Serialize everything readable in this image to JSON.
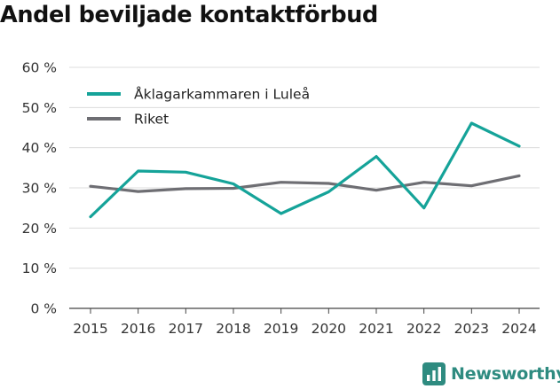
{
  "chart_data": {
    "type": "line",
    "title": "Andel beviljade kontaktförbud",
    "xlabel": "",
    "ylabel": "",
    "categories": [
      "2015",
      "2016",
      "2017",
      "2018",
      "2019",
      "2020",
      "2021",
      "2022",
      "2023",
      "2024"
    ],
    "ylim": [
      0,
      60
    ],
    "yticks": [
      0,
      10,
      20,
      30,
      40,
      50,
      60
    ],
    "ytick_labels": [
      "0 %",
      "10 %",
      "20 %",
      "30 %",
      "40 %",
      "50 %",
      "60 %"
    ],
    "grid": true,
    "legend_position": "top-left",
    "series": [
      {
        "name": "Åklagarkammaren i Luleå",
        "color": "#15a399",
        "values": [
          22.8,
          34.2,
          33.9,
          31.0,
          23.6,
          29.0,
          37.8,
          25.0,
          46.1,
          40.4
        ]
      },
      {
        "name": "Riket",
        "color": "#6e6e73",
        "values": [
          30.4,
          29.1,
          29.8,
          29.9,
          31.4,
          31.1,
          29.4,
          31.4,
          30.5,
          33.0
        ]
      }
    ]
  },
  "branding": {
    "name": "Newsworthy",
    "logo_icon": "bar-chart-logo-icon",
    "color": "#2e8b80"
  }
}
